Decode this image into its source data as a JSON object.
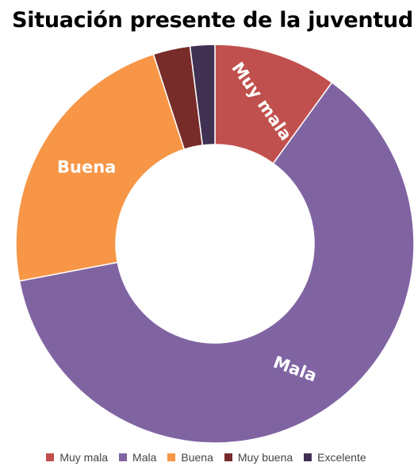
{
  "chart_data": {
    "type": "pie",
    "style": "donut",
    "title": "Situación presente de la juventud",
    "categories": [
      "Muy mala",
      "Mala",
      "Buena",
      "Muy buena",
      "Excelente"
    ],
    "values": [
      10,
      62,
      23,
      3,
      2
    ],
    "unit": "%",
    "colors": [
      "#C0504D",
      "#8064A2",
      "#F79646",
      "#772C2A",
      "#403152"
    ],
    "data_labels": [
      "Muy mala",
      "Mala",
      "Buena",
      "",
      ""
    ],
    "legend_position": "bottom",
    "start_angle_deg": 0,
    "direction": "clockwise"
  }
}
